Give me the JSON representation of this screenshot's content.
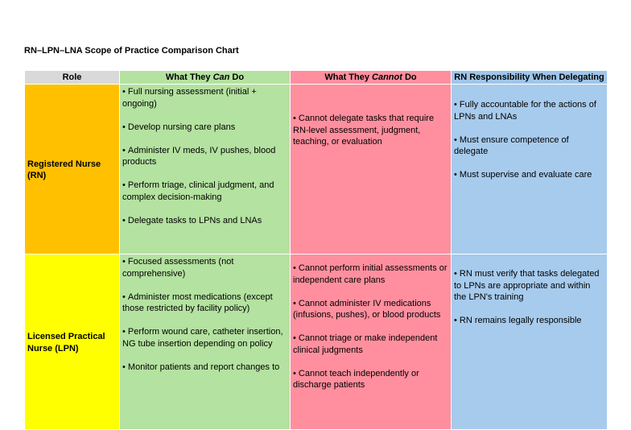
{
  "title": "RN–LPN–LNA Scope of Practice Comparison Chart",
  "table": {
    "header": [
      [
        "Role"
      ],
      [
        "What They ",
        "Can",
        " Do"
      ],
      [
        "What They ",
        "Cannot",
        " Do"
      ],
      [
        "RN Responsibility When Delegating"
      ]
    ],
    "rows": [
      {
        "role": "Registered Nurse (RN)",
        "can": [
          "Full nursing assessment (initial + ongoing)",
          "Develop nursing care plans",
          "Administer IV meds, IV pushes, blood products",
          "Perform triage, clinical judgment, and complex decision-making",
          "Delegate tasks to LPNs and LNAs"
        ],
        "cannot": [
          "Cannot delegate tasks that require RN-level assessment, judgment, teaching, or evaluation"
        ],
        "responsibility": [
          "Fully accountable for the actions of LPNs and LNAs",
          "Must ensure competence of delegate",
          "Must supervise and evaluate care"
        ]
      },
      {
        "role": "Licensed Practical Nurse (LPN)",
        "can": [
          "Focused assessments (not comprehensive)",
          "Administer most medications (except those restricted by facility policy)",
          "Perform wound care, catheter insertion, NG tube insertion depending on policy",
          "Monitor patients and report changes to"
        ],
        "cannot": [
          "Cannot perform initial assessments or independent care plans",
          "Cannot administer IV medications (infusions, pushes), or blood products",
          "Cannot triage or make independent clinical judgments",
          "Cannot teach independently or discharge patients"
        ],
        "responsibility": [
          "RN must verify that tasks delegated to LPNs are appropriate and within the LPN's training",
          "RN remains legally responsible"
        ]
      }
    ]
  }
}
